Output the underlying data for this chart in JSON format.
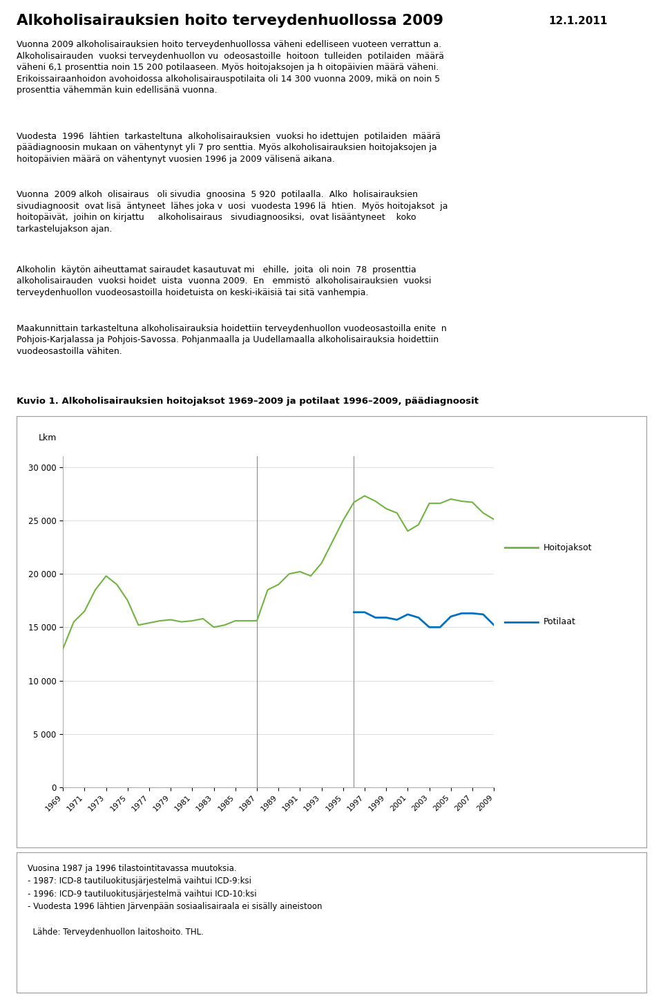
{
  "title": "Alkoholisairauksien hoito terveydenhuollossa 2009",
  "date": "12.1.2011",
  "figure_title": "Kuvio 1. Alkoholisairauksien hoitojaksot 1969–2009 ja potilaat 1996–2009, päädiagnoosit",
  "ylabel": "Lkm",
  "yticks": [
    0,
    5000,
    10000,
    15000,
    20000,
    25000,
    30000
  ],
  "ylim": [
    0,
    31000
  ],
  "hoitojaksot_years": [
    1969,
    1970,
    1971,
    1972,
    1973,
    1974,
    1975,
    1976,
    1977,
    1978,
    1979,
    1980,
    1981,
    1982,
    1983,
    1984,
    1985,
    1986,
    1987,
    1988,
    1989,
    1990,
    1991,
    1992,
    1993,
    1994,
    1995,
    1996,
    1997,
    1998,
    1999,
    2000,
    2001,
    2002,
    2003,
    2004,
    2005,
    2006,
    2007,
    2008,
    2009
  ],
  "hoitojaksot_values": [
    13000,
    15500,
    16500,
    18500,
    19800,
    19000,
    17500,
    15200,
    15400,
    15600,
    15700,
    15500,
    15600,
    15800,
    15000,
    15200,
    15600,
    15600,
    15600,
    18500,
    19000,
    20000,
    20200,
    19800,
    21000,
    23000,
    25000,
    26700,
    27300,
    26800,
    26100,
    25700,
    24000,
    24600,
    26600,
    26600,
    27000,
    26800,
    26700,
    25700,
    25100
  ],
  "potilaat_years": [
    1996,
    1997,
    1998,
    1999,
    2000,
    2001,
    2002,
    2003,
    2004,
    2005,
    2006,
    2007,
    2008,
    2009
  ],
  "potilaat_values": [
    16400,
    16400,
    15900,
    15900,
    15700,
    16200,
    15900,
    15000,
    15000,
    16000,
    16300,
    16300,
    16200,
    15200
  ],
  "hoitojaksot_color": "#6eb43f",
  "potilaat_color": "#0070c0",
  "vline_years": [
    1987,
    1996
  ],
  "vline_color": "#808080",
  "grid_color": "#d0d0d0",
  "background_color": "#ffffff",
  "body_paragraphs": [
    "Vuonna 2009 alkoholisairauksien hoito terveydenhuollossa väheni edelliseen vuoteen verrattun a.\nAlkoholisairauden  vuoksi terveydenhuollon vu  odeosastoille  hoitoon  tulleiden  potilaiden  määrä\nväheni 6,1 prosenttia noin 15 200 potilaaseen. Myös hoitojaksojen ja h oitopäivien määrä väheni.\nErikoissairaanhoidon avohoidossa alkoholisairauspotilaita oli 14 300 vuonna 2009, mikä on noin 5\nprosenttia vähemmän kuin edellisänä vuonna.",
    "Vuodesta  1996  lähtien  tarkasteltuna  alkoholisairauksien  vuoksi ho idettujen  potilaiden  määrä\npäädiagnoosin mukaan on vähentynyt yli 7 pro senttia. Myös alkoholisairauksien hoitojaksojen ja\nhoitopäivien määrä on vähentynyt vuosien 1996 ja 2009 välisenä aikana.",
    "Vuonna  2009 alkoh  olisairaus   oli sivudia  gnoosina  5 920  potilaalla.  Alko  holisairauksien\nsivudiagnoosit  ovat lisä  äntyneet  lähes joka v  uosi  vuodesta 1996 lä  htien.  Myös hoitojaksot  ja\nhoitopäivät,  joihin on kirjattu     alkoholisairaus   sivudiagnoosiksi,  ovat lisääntyneet    koko\ntarkastelujakson ajan.",
    "Alkoholin  käytön aiheuttamat sairaudet kasautuvat mi   ehille,  joita  oli noin  78  prosenttia\nalkoholisairauden  vuoksi hoidet  uista  vuonna 2009.  En   emmistö  alkoholisairauksien  vuoksi\nterveydenhuollon vuodeosastoilla hoidetuista on keski-ikäisiä tai sitä vanhempia.",
    "Maakunnittain tarkasteltuna alkoholisairauksia hoidettiin terveydenhuollon vuodeosastoilla enite  n\nPohjois-Karjalassa ja Pohjois-Savossa. Pohjanmaalla ja Uudellamaalla alkoholisairauksia hoidettiin\nvuodeosastoilla vähiten."
  ],
  "footnote_lines": [
    "Vuosina 1987 ja 1996 tilastointitavassa muutoksia.",
    "- 1987: ICD-8 tautiluokitusjärjestelmä vaihtui ICD-9:ksi",
    "- 1996: ICD-9 tautiluokitusjärjestelmä vaihtui ICD-10:ksi",
    "- Vuodesta 1996 lähtien Järvenpään sosiaalisairaala ei sisälly aineistoon"
  ],
  "source": "Lähde: Terveydenhuollon laitoshoito. THL.",
  "legend_hoitojaksot": "Hoitojaksot",
  "legend_potilaat": "Potilaat"
}
